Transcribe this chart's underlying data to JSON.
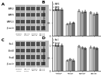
{
  "panel_B": {
    "title": "B",
    "legend": [
      "MMP2",
      "MMP9",
      "MMP13"
    ],
    "bar_colors": [
      "#d0d0d0",
      "#a8a8a8",
      "#707070"
    ],
    "groups": [
      "Exosome\ncontrol",
      "miR-21a\ncontrol",
      "Exosome\nmiR-21a\ninhibitor",
      "miR-21a\nmiR-21a\ninhibitor"
    ],
    "group_labels": [
      "Exosome\ncontrol",
      "miR-21a\ncontrol",
      "Exosome\nmiR-21a\ninhib.",
      "miR-21a\ninhib."
    ],
    "data": [
      [
        1.0,
        0.45,
        0.95,
        0.88
      ],
      [
        1.0,
        0.48,
        0.9,
        0.82
      ],
      [
        1.0,
        0.5,
        0.92,
        0.84
      ]
    ],
    "errors": [
      [
        0.04,
        0.03,
        0.04,
        0.04
      ],
      [
        0.04,
        0.03,
        0.04,
        0.04
      ],
      [
        0.04,
        0.03,
        0.04,
        0.04
      ]
    ],
    "ylim": [
      0,
      1.3
    ],
    "yticks": [
      0.0,
      0.5,
      1.0
    ],
    "ylabel": "Relative expression"
  },
  "panel_D": {
    "title": "D",
    "legend": [
      "Rac1",
      "Cdc42",
      "RhoA"
    ],
    "bar_colors": [
      "#d0d0d0",
      "#a8a8a8",
      "#707070"
    ],
    "group_labels": [
      "Exosome\ncontrol",
      "miR-21a\ncontrol",
      "Exosome\nmiR-21a\ninhib.",
      "miR-21a\ninhib."
    ],
    "data": [
      [
        1.0,
        0.4,
        0.95,
        0.92
      ],
      [
        1.0,
        0.45,
        0.9,
        0.9
      ],
      [
        1.0,
        0.42,
        0.88,
        0.88
      ]
    ],
    "errors": [
      [
        0.04,
        0.03,
        0.04,
        0.04
      ],
      [
        0.04,
        0.03,
        0.04,
        0.04
      ],
      [
        0.04,
        0.03,
        0.04,
        0.04
      ]
    ],
    "ylim": [
      0,
      1.3
    ],
    "yticks": [
      0.0,
      0.5,
      1.0
    ],
    "ylabel": "Relative expression"
  },
  "panel_A": {
    "title": "A",
    "labels": [
      "MMP2",
      "MMP9",
      "MMP13",
      "β-actin"
    ],
    "n_lanes": 6,
    "band_intensities": [
      [
        0.35,
        0.35,
        0.35,
        0.35,
        0.35,
        0.35
      ],
      [
        0.35,
        0.35,
        0.35,
        0.35,
        0.35,
        0.35
      ],
      [
        0.35,
        0.35,
        0.35,
        0.35,
        0.35,
        0.35
      ],
      [
        0.38,
        0.38,
        0.38,
        0.38,
        0.38,
        0.38
      ]
    ],
    "x_labels": [
      "Exosome\ncontrol",
      "miR-21a\ncontrol",
      "Exosome\nmiR-21a",
      "miR-21a\nmiR-21a"
    ]
  },
  "panel_C": {
    "title": "C",
    "labels": [
      "Rac1",
      "Cdc42",
      "RhoA",
      "β-actin"
    ],
    "n_lanes": 6,
    "band_intensities": [
      [
        0.35,
        0.35,
        0.35,
        0.35,
        0.35,
        0.35
      ],
      [
        0.35,
        0.35,
        0.35,
        0.35,
        0.35,
        0.35
      ],
      [
        0.35,
        0.35,
        0.35,
        0.35,
        0.35,
        0.35
      ],
      [
        0.38,
        0.38,
        0.38,
        0.38,
        0.38,
        0.38
      ]
    ],
    "x_labels": [
      "Exosome\ncontrol",
      "miR-21a\ncontrol",
      "Exosome\nmiR-21a",
      "miR-21a\nmiR-21a"
    ]
  },
  "wb_bg": "#c8c8c8",
  "bg_color": "#ffffff"
}
